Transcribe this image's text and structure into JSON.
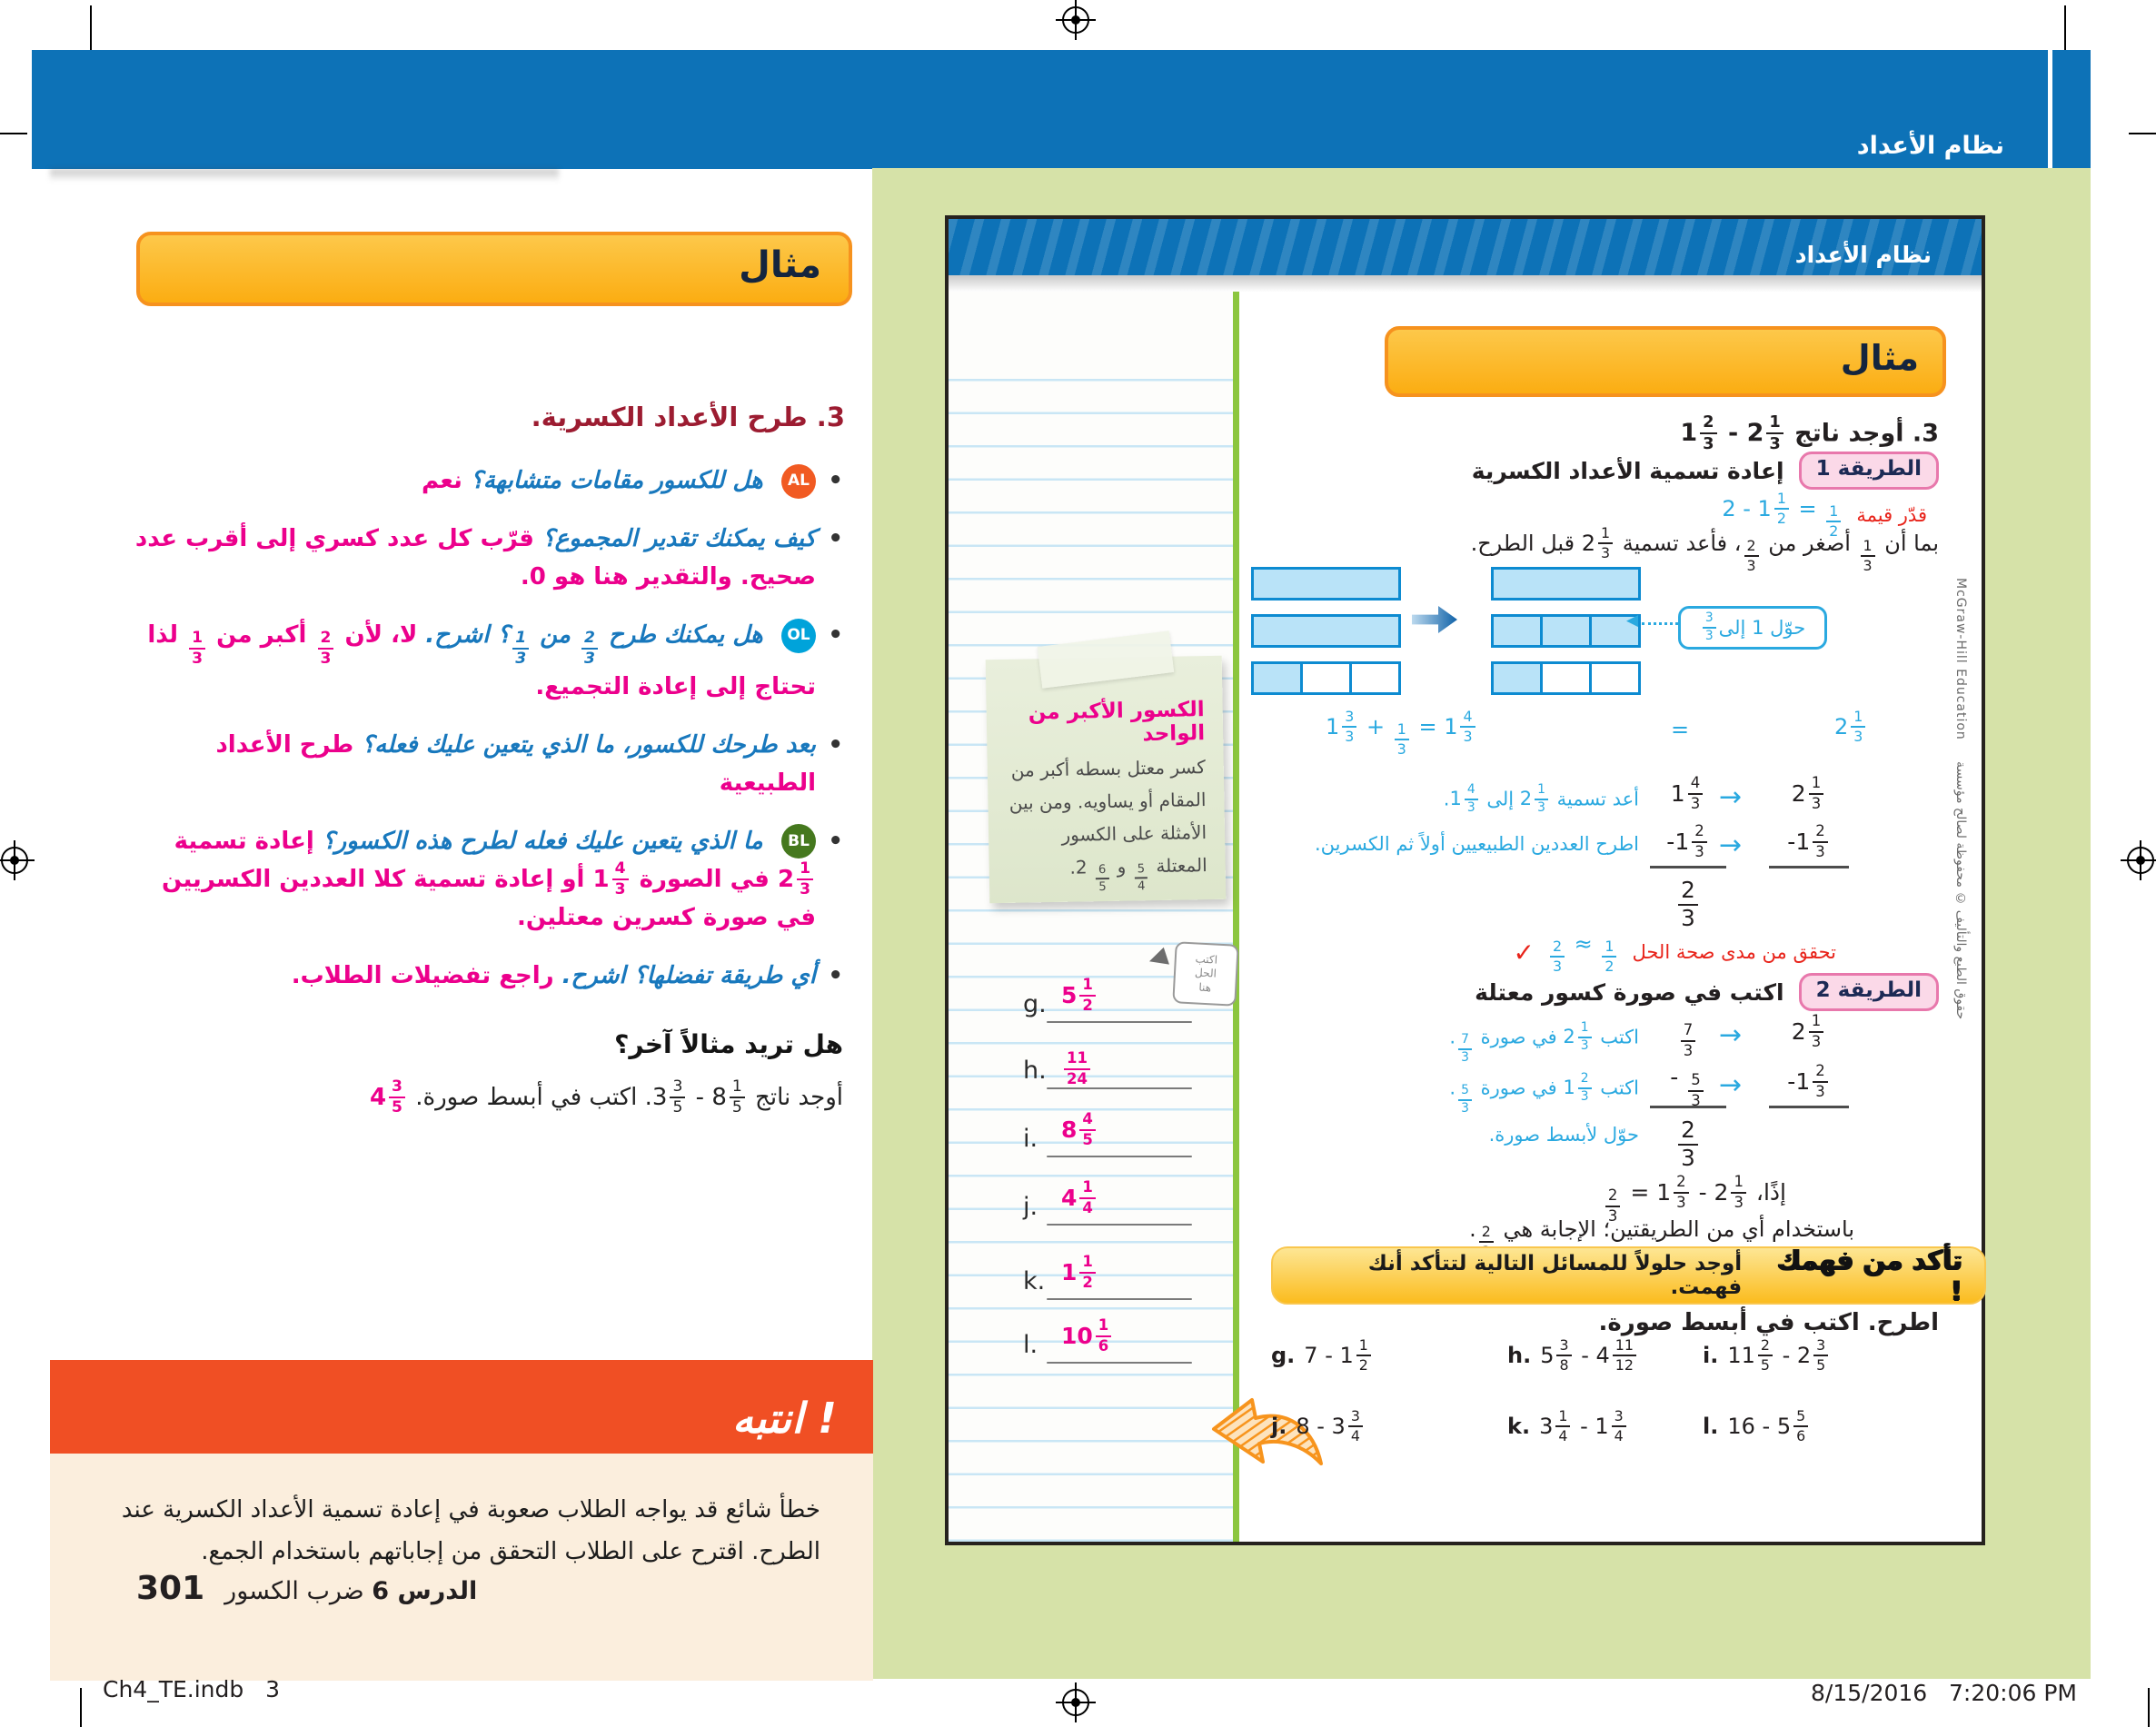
{
  "colors": {
    "header_blue": "#0d72b7",
    "olive": "#d6e2a8",
    "banner_yellow": "#fbad12",
    "orange": "#f04f24",
    "cream": "#fbeedd",
    "pink": "#ec008c",
    "blue_question": "#1878bd",
    "math_blue": "#2aa9e0",
    "red": "#e8231a",
    "maroon": "#9c1c31",
    "green_strip": "#8cc63e",
    "bar_fill": "#b9e3f8",
    "bar_border": "#0d8bd1",
    "badge_al": "#f15a22",
    "badge_ol": "#00a3da",
    "badge_bl": "#45781e"
  },
  "icons": {
    "arrow": "→",
    "dotted_head": "◀",
    "stamp_arrow": "◀",
    "check": "✓",
    "bullet": "•"
  },
  "masthead": {
    "label": "نظام الأعداد"
  },
  "teacher": {
    "example_banner": "مثال",
    "step_heading": "3. طرح الأعداد الكسرية.",
    "bullets": [
      {
        "badge": "AL",
        "q": [
          {
            "t": "هل للكسور مقامات متشابهة؟ "
          }
        ],
        "a": [
          {
            "t": "نعم"
          }
        ]
      },
      {
        "q": [
          {
            "t": "كيف يمكنك تقدير المجموع؟ "
          }
        ],
        "a": [
          {
            "t": "قرّب كل عدد كسري إلى أقرب عدد صحيح. والتقدير هنا هو 0."
          }
        ]
      },
      {
        "badge": "OL",
        "q": [
          {
            "t": "هل يمكنك طرح "
          },
          {
            "f": [
              "2",
              "3"
            ]
          },
          {
            "t": " من "
          },
          {
            "f": [
              "1",
              "3"
            ]
          },
          {
            "t": "؟ اشرح. "
          }
        ],
        "a": [
          {
            "t": "لا، لأن "
          },
          {
            "f": [
              "2",
              "3"
            ]
          },
          {
            "t": " أكبر من "
          },
          {
            "f": [
              "1",
              "3"
            ]
          },
          {
            "t": " لذا تحتاج إلى إعادة التجميع."
          }
        ]
      },
      {
        "q": [
          {
            "t": "بعد طرحك للكسور، ما الذي يتعين عليك فعله؟ "
          }
        ],
        "a": [
          {
            "t": "طرح الأعداد الطبيعية"
          }
        ]
      },
      {
        "badge": "BL",
        "q": [
          {
            "t": "ما الذي يتعين عليك فعله لطرح هذه الكسور؟ "
          }
        ],
        "a": [
          {
            "t": "إعادة تسمية "
          },
          {
            "m": [
              "2",
              "1",
              "3"
            ]
          },
          {
            "t": " في الصورة "
          },
          {
            "m": [
              "1",
              "4",
              "3"
            ]
          },
          {
            "t": " أو إعادة تسمية كلا العددين الكسريين في صورة كسرين معتلين."
          }
        ]
      },
      {
        "q": [
          {
            "t": "أي طريقة تفضلها؟ اشرح. "
          }
        ],
        "a": [
          {
            "t": "راجع تفضيلات الطلاب."
          }
        ]
      }
    ],
    "more_example_title": "هل تريد مثالاً آخر؟",
    "more_example_line": [
      {
        "t": "أوجد ناتج "
      },
      {
        "m": [
          "8",
          "1",
          "5"
        ]
      },
      {
        "t": " - "
      },
      {
        "m": [
          "3",
          "3",
          "5"
        ]
      },
      {
        "t": ". اكتب في أبسط صورة. "
      }
    ],
    "more_example_answer": [
      {
        "m": [
          "4",
          "3",
          "5"
        ]
      }
    ],
    "attention": {
      "banner": "انتبه !",
      "body": "خطأ شائع قد يواجه الطلاب صعوبة في إعادة تسمية الأعداد الكسرية عند الطرح. اقترح على الطلاب التحقق من إجاباتهم باستخدام الجمع.",
      "lesson_number": "301",
      "lesson_label": "الدرس 6",
      "lesson_topic": "ضرب الكسور"
    }
  },
  "student_page": {
    "header_label": "نظام الأعداد",
    "example_banner": "مثال",
    "problem": [
      {
        "t": "3. أوجد ناتج "
      },
      {
        "m": [
          "2",
          "1",
          "3"
        ]
      },
      {
        "t": " - "
      },
      {
        "m": [
          "1",
          "2",
          "3"
        ]
      }
    ],
    "method1": {
      "badge": "الطريقة 1",
      "title": "إعادة تسمية الأعداد الكسرية",
      "estimate_label": "قدّر قيمة",
      "estimate_math": [
        {
          "t": "2 - "
        },
        {
          "m": [
            "1",
            "1",
            "2"
          ]
        },
        {
          "t": " = "
        },
        {
          "f": [
            "1",
            "2"
          ]
        }
      ],
      "since_line": [
        {
          "t": "بما أن "
        },
        {
          "f": [
            "1",
            "3"
          ]
        },
        {
          "t": " أصغر من "
        },
        {
          "f": [
            "2",
            "3"
          ]
        },
        {
          "t": "، فأعد تسمية "
        },
        {
          "m": [
            "2",
            "1",
            "3"
          ]
        },
        {
          "t": " قبل الطرح."
        }
      ],
      "model": {
        "left": [
          {
            "cells": 1,
            "filled": 1
          },
          {
            "cells": 1,
            "filled": 1
          },
          {
            "cells": 3,
            "filled": 1
          }
        ],
        "right": [
          {
            "cells": 1,
            "filled": 1
          },
          {
            "cells": 3,
            "filled": 3
          },
          {
            "cells": 3,
            "filled": 1
          }
        ],
        "callout": [
          {
            "t": "حوّل 1 إلى "
          },
          {
            "f": [
              "3",
              "3"
            ]
          }
        ]
      },
      "model_equation": {
        "main": [
          {
            "m": [
              "1",
              "3",
              "3"
            ]
          },
          {
            "t": " + "
          },
          {
            "f": [
              "1",
              "3"
            ]
          },
          {
            "t": " = "
          },
          {
            "m": [
              "1",
              "4",
              "3"
            ]
          }
        ],
        "equals": "=",
        "result": [
          {
            "m": [
              "2",
              "1",
              "3"
            ]
          }
        ]
      },
      "steps": [
        {
          "label": [
            {
              "t": "أعد تسمية "
            },
            {
              "m": [
                "2",
                "1",
                "3"
              ]
            },
            {
              "t": " إلى "
            },
            {
              "m": [
                "1",
                "4",
                "3"
              ]
            },
            {
              "t": "."
            }
          ],
          "left": [
            {
              "m": [
                "1",
                "4",
                "3"
              ]
            }
          ],
          "right": [
            {
              "m": [
                "2",
                "1",
                "3"
              ]
            }
          ]
        },
        {
          "label": [
            {
              "t": "اطرح العددين الطبيعيين أولاً ثم الكسرين."
            }
          ],
          "left": [
            {
              "t": "-"
            },
            {
              "m": [
                "1",
                "2",
                "3"
              ]
            }
          ],
          "right": [
            {
              "t": "-"
            },
            {
              "m": [
                "1",
                "2",
                "3"
              ]
            }
          ]
        }
      ],
      "difference": [
        {
          "f": [
            "2",
            "3"
          ]
        }
      ],
      "check": {
        "label": "تحقق من مدى صحة الحل",
        "math": [
          {
            "f": [
              "2",
              "3"
            ]
          },
          {
            "t": " ≈ "
          },
          {
            "f": [
              "1",
              "2"
            ]
          }
        ],
        "mark": "✓"
      }
    },
    "method2": {
      "badge": "الطريقة 2",
      "title": "اكتب في صورة كسور معتلة",
      "steps": [
        {
          "label": [
            {
              "t": "اكتب "
            },
            {
              "m": [
                "2",
                "1",
                "3"
              ]
            },
            {
              "t": " في صورة "
            },
            {
              "f": [
                "7",
                "3"
              ]
            },
            {
              "t": "."
            }
          ],
          "left": [
            {
              "f": [
                "7",
                "3"
              ]
            }
          ],
          "right": [
            {
              "m": [
                "2",
                "1",
                "3"
              ]
            }
          ]
        },
        {
          "label": [
            {
              "t": "اكتب "
            },
            {
              "m": [
                "1",
                "2",
                "3"
              ]
            },
            {
              "t": " في صورة "
            },
            {
              "f": [
                "5",
                "3"
              ]
            },
            {
              "t": "."
            }
          ],
          "left": [
            {
              "t": "- "
            },
            {
              "f": [
                "5",
                "3"
              ]
            }
          ],
          "right": [
            {
              "t": "-"
            },
            {
              "m": [
                "1",
                "2",
                "3"
              ]
            }
          ]
        }
      ],
      "simplify_label": "حوّل لأبسط صورة.",
      "difference": [
        {
          "f": [
            "2",
            "3"
          ]
        }
      ],
      "conclusion": [
        {
          "t": "إذًا، "
        },
        {
          "m": [
            "2",
            "1",
            "3"
          ]
        },
        {
          "t": " - "
        },
        {
          "m": [
            "1",
            "2",
            "3"
          ]
        },
        {
          "t": " = "
        },
        {
          "f": [
            "2",
            "3"
          ]
        }
      ],
      "either_way": [
        {
          "t": "باستخدام أي من الطريقتين؛ الإجابة هي "
        },
        {
          "f": [
            "2",
            "3"
          ]
        },
        {
          "t": "."
        }
      ]
    },
    "check_banner": {
      "title": "تأكد من فهمك !",
      "text": "أوجد حلولاً للمسائل التالية لتتأكد أنك فهمت."
    },
    "subtract_heading": "اطرح. اكتب في أبسط صورة.",
    "exercises": [
      {
        "label": "g.",
        "expr": [
          {
            "t": "7 - "
          },
          {
            "m": [
              "1",
              "1",
              "2"
            ]
          }
        ]
      },
      {
        "label": "h.",
        "expr": [
          {
            "m": [
              "5",
              "3",
              "8"
            ]
          },
          {
            "t": " - "
          },
          {
            "m": [
              "4",
              "11",
              "12"
            ]
          }
        ]
      },
      {
        "label": "i.",
        "expr": [
          {
            "m": [
              "11",
              "2",
              "5"
            ]
          },
          {
            "t": " - "
          },
          {
            "m": [
              "2",
              "3",
              "5"
            ]
          }
        ]
      },
      {
        "label": "j.",
        "expr": [
          {
            "t": "8 - "
          },
          {
            "m": [
              "3",
              "3",
              "4"
            ]
          }
        ]
      },
      {
        "label": "k.",
        "expr": [
          {
            "m": [
              "3",
              "1",
              "4"
            ]
          },
          {
            "t": " - "
          },
          {
            "m": [
              "1",
              "3",
              "4"
            ]
          }
        ]
      },
      {
        "label": "l.",
        "expr": [
          {
            "t": "16 - "
          },
          {
            "m": [
              "5",
              "5",
              "6"
            ]
          }
        ]
      }
    ],
    "notebook": {
      "sticky_title": "الكسور الأكبر من الواحد",
      "sticky_body": [
        {
          "t": "كسر معتل بسطه أكبر من المقام أو يساويه. ومن بين الأمثلة على الكسور المعتلة "
        },
        {
          "f": [
            "5",
            "4"
          ]
        },
        {
          "t": " و "
        },
        {
          "f": [
            "6",
            "5"
          ]
        },
        {
          "t": " 2."
        }
      ],
      "stamp": {
        "l1": "اكتب",
        "l2": "الحل",
        "l3": "هنا"
      },
      "answers": [
        {
          "label": "g.",
          "value": [
            {
              "m": [
                "5",
                "1",
                "2"
              ]
            }
          ]
        },
        {
          "label": "h.",
          "value": [
            {
              "f": [
                "11",
                "24"
              ]
            }
          ]
        },
        {
          "label": "i.",
          "value": [
            {
              "m": [
                "8",
                "4",
                "5"
              ]
            }
          ]
        },
        {
          "label": "j.",
          "value": [
            {
              "m": [
                "4",
                "1",
                "4"
              ]
            }
          ]
        },
        {
          "label": "k.",
          "value": [
            {
              "m": [
                "1",
                "1",
                "2"
              ]
            }
          ]
        },
        {
          "label": "l.",
          "value": [
            {
              "m": [
                "10",
                "1",
                "6"
              ]
            }
          ]
        }
      ]
    },
    "copyright_en": "McGraw-Hill Education",
    "copyright_ar": "حقوق الطبع والتأليف © محفوظة لصالح مؤسسة"
  },
  "footer": {
    "left": "Ch4_TE.indb   3",
    "right": "8/15/2016   7:20:06 PM"
  }
}
